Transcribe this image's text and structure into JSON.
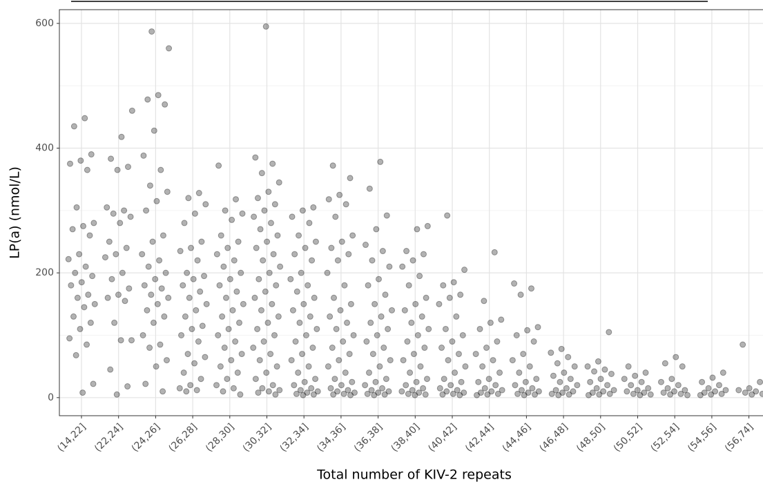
{
  "chart_data": {
    "type": "strip",
    "x_label": "Total number of KIV-2 repeats",
    "y_label": "LP(a) (nmol/L)",
    "categories": [
      "(14,22]",
      "(22,24]",
      "(24,26]",
      "(26,28]",
      "(28,30]",
      "(30,32]",
      "(32,34]",
      "(34,36]",
      "(36,38]",
      "(38,40]",
      "(40,42]",
      "(42,44]",
      "(44,46]",
      "(46,48]",
      "(48,50]",
      "(50,52]",
      "(52,54]",
      "(54,56]",
      "(56,74]"
    ],
    "values": [
      [
        448,
        435,
        390,
        380,
        375,
        365,
        305,
        280,
        275,
        270,
        260,
        230,
        222,
        210,
        200,
        195,
        185,
        180,
        165,
        160,
        150,
        145,
        130,
        120,
        110,
        95,
        85,
        68,
        22,
        8
      ],
      [
        460,
        418,
        383,
        370,
        365,
        305,
        300,
        295,
        290,
        280,
        250,
        240,
        230,
        225,
        200,
        190,
        175,
        165,
        160,
        155,
        120,
        92,
        92,
        45,
        18,
        5
      ],
      [
        587,
        560,
        485,
        478,
        470,
        428,
        388,
        365,
        340,
        330,
        315,
        300,
        260,
        250,
        230,
        220,
        210,
        200,
        190,
        180,
        175,
        165,
        160,
        150,
        140,
        130,
        120,
        100,
        85,
        80,
        60,
        50,
        22,
        10
      ],
      [
        328,
        320,
        310,
        295,
        280,
        250,
        240,
        235,
        220,
        200,
        195,
        190,
        180,
        170,
        160,
        150,
        140,
        130,
        115,
        110,
        100,
        90,
        70,
        65,
        55,
        40,
        30,
        20,
        15,
        12,
        10
      ],
      [
        372,
        318,
        300,
        295,
        285,
        260,
        250,
        240,
        230,
        220,
        210,
        200,
        190,
        180,
        170,
        160,
        150,
        140,
        130,
        120,
        110,
        100,
        90,
        80,
        70,
        60,
        50,
        40,
        30,
        20,
        15,
        10,
        5
      ],
      [
        595,
        385,
        375,
        360,
        345,
        330,
        320,
        310,
        300,
        290,
        280,
        270,
        260,
        250,
        240,
        230,
        220,
        210,
        200,
        190,
        180,
        170,
        160,
        150,
        140,
        130,
        120,
        110,
        100,
        90,
        80,
        70,
        60,
        50,
        40,
        30,
        20,
        15,
        12,
        10,
        8,
        5
      ],
      [
        305,
        300,
        290,
        280,
        260,
        250,
        240,
        230,
        220,
        200,
        190,
        180,
        170,
        160,
        150,
        140,
        130,
        120,
        110,
        100,
        90,
        80,
        70,
        60,
        50,
        40,
        30,
        25,
        20,
        15,
        12,
        10,
        8,
        6,
        5,
        4
      ],
      [
        372,
        352,
        325,
        318,
        310,
        290,
        260,
        250,
        240,
        230,
        220,
        200,
        180,
        160,
        150,
        140,
        130,
        120,
        110,
        100,
        90,
        80,
        70,
        60,
        50,
        40,
        30,
        25,
        20,
        15,
        12,
        10,
        8,
        6,
        5,
        4
      ],
      [
        378,
        335,
        292,
        270,
        245,
        235,
        220,
        210,
        190,
        180,
        165,
        150,
        140,
        130,
        120,
        110,
        100,
        90,
        80,
        70,
        60,
        50,
        40,
        30,
        25,
        20,
        15,
        12,
        10,
        8,
        6,
        5,
        4
      ],
      [
        275,
        270,
        235,
        230,
        220,
        210,
        195,
        180,
        160,
        150,
        140,
        130,
        120,
        110,
        100,
        90,
        80,
        70,
        60,
        50,
        40,
        30,
        25,
        20,
        15,
        12,
        10,
        8,
        6,
        5,
        4
      ],
      [
        292,
        205,
        185,
        180,
        165,
        160,
        150,
        130,
        110,
        100,
        90,
        80,
        70,
        60,
        50,
        40,
        30,
        25,
        20,
        15,
        12,
        10,
        8,
        6,
        5,
        4
      ],
      [
        233,
        155,
        125,
        120,
        110,
        90,
        80,
        70,
        60,
        50,
        40,
        30,
        25,
        20,
        15,
        12,
        10,
        8,
        6,
        5,
        4
      ],
      [
        183,
        175,
        165,
        113,
        108,
        100,
        90,
        70,
        60,
        50,
        40,
        30,
        25,
        20,
        15,
        12,
        10,
        8,
        6,
        5,
        4
      ],
      [
        78,
        72,
        65,
        55,
        50,
        40,
        35,
        30,
        25,
        20,
        15,
        12,
        10,
        8,
        6,
        5,
        4
      ],
      [
        105,
        58,
        50,
        45,
        42,
        38,
        30,
        25,
        20,
        15,
        12,
        10,
        8,
        6,
        5,
        4
      ],
      [
        50,
        40,
        35,
        30,
        25,
        20,
        15,
        12,
        10,
        8,
        6,
        5,
        4
      ],
      [
        65,
        55,
        50,
        30,
        25,
        20,
        15,
        12,
        10,
        8,
        6,
        5,
        4
      ],
      [
        40,
        32,
        25,
        20,
        15,
        12,
        10,
        8,
        6,
        5,
        4
      ],
      [
        85,
        25,
        15,
        12,
        10,
        8,
        6,
        5
      ]
    ],
    "color": "#000000",
    "ylim": [
      -29,
      622
    ],
    "yticks": [
      0,
      200,
      400,
      600
    ],
    "yminorticks": [
      100,
      300,
      500
    ],
    "grid": true
  }
}
